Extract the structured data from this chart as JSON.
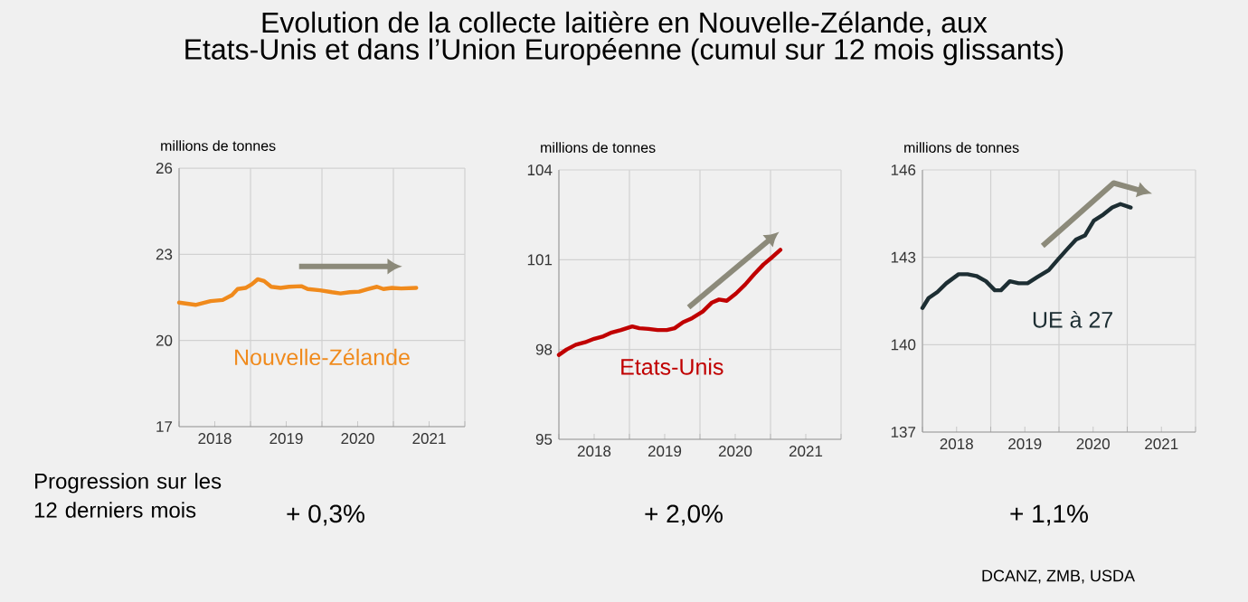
{
  "chart_data": [
    {
      "type": "line",
      "title": "Evolution de la collecte laitière en Nouvelle-Zélande, aux Etats-Unis et dans l’Union Européenne (cumul sur 12 mois glissants)",
      "ylabel": "millions de tonnes",
      "xlim": [
        2018,
        2022
      ],
      "ylim": [
        17,
        26
      ],
      "yticks": [
        17,
        20,
        23,
        26
      ],
      "xticks": [
        {
          "value": 2018,
          "label": null
        },
        {
          "value": 2018.5,
          "label": "2018"
        },
        {
          "value": 2019,
          "label": null
        },
        {
          "value": 2019.5,
          "label": "2019"
        },
        {
          "value": 2020,
          "label": null
        },
        {
          "value": 2020.5,
          "label": "2020"
        },
        {
          "value": 2021,
          "label": null
        },
        {
          "value": 2021.5,
          "label": "2021"
        },
        {
          "value": 2022,
          "label": null
        }
      ],
      "grid": true,
      "marker": "none",
      "line_style": "solid",
      "annotations": [
        "Progression sur les 12 derniers mois",
        "+ 0,3%"
      ],
      "series": [
        {
          "name": "Nouvelle-Zélande",
          "color": "#f08a1c",
          "x": [
            2018.0,
            2018.23,
            2018.44,
            2018.61,
            2018.74,
            2018.82,
            2018.93,
            2019.02,
            2019.1,
            2019.19,
            2019.29,
            2019.42,
            2019.54,
            2019.71,
            2019.8,
            2019.97,
            2020.14,
            2020.26,
            2020.39,
            2020.52,
            2020.64,
            2020.77,
            2020.86,
            2020.98,
            2021.11,
            2021.32
          ],
          "values": [
            21.32,
            21.24,
            21.37,
            21.41,
            21.58,
            21.79,
            21.83,
            21.96,
            22.13,
            22.07,
            21.87,
            21.83,
            21.87,
            21.89,
            21.79,
            21.75,
            21.68,
            21.64,
            21.68,
            21.7,
            21.79,
            21.87,
            21.79,
            21.83,
            21.81,
            21.83
          ]
        }
      ]
    },
    {
      "type": "line",
      "ylabel": "millions de tonnes",
      "xlim": [
        2018,
        2022
      ],
      "ylim": [
        95,
        104
      ],
      "yticks": [
        95,
        98,
        101,
        104
      ],
      "xticks": [
        {
          "value": 2018,
          "label": null
        },
        {
          "value": 2018.5,
          "label": "2018"
        },
        {
          "value": 2019,
          "label": null
        },
        {
          "value": 2019.5,
          "label": "2019"
        },
        {
          "value": 2020,
          "label": null
        },
        {
          "value": 2020.5,
          "label": "2020"
        },
        {
          "value": 2021,
          "label": null
        },
        {
          "value": 2021.5,
          "label": "2021"
        },
        {
          "value": 2022,
          "label": null
        }
      ],
      "grid": true,
      "marker": "none",
      "line_style": "solid",
      "annotations": [
        "+ 2,0%"
      ],
      "series": [
        {
          "name": "Etats-Unis",
          "color": "#c00000",
          "x": [
            2018.0,
            2018.11,
            2018.24,
            2018.37,
            2018.5,
            2018.63,
            2018.75,
            2018.88,
            2019.04,
            2019.14,
            2019.27,
            2019.4,
            2019.53,
            2019.64,
            2019.76,
            2019.89,
            2020.04,
            2020.17,
            2020.27,
            2020.38,
            2020.51,
            2020.64,
            2020.77,
            2020.9,
            2021.02,
            2021.14
          ],
          "values": [
            97.82,
            98.0,
            98.16,
            98.24,
            98.36,
            98.44,
            98.57,
            98.65,
            98.77,
            98.71,
            98.69,
            98.65,
            98.65,
            98.71,
            98.91,
            99.05,
            99.27,
            99.57,
            99.67,
            99.63,
            99.87,
            100.17,
            100.52,
            100.84,
            101.08,
            101.33
          ]
        }
      ]
    },
    {
      "type": "line",
      "ylabel": "millions de tonnes",
      "xlim": [
        2018,
        2022
      ],
      "ylim": [
        137,
        146
      ],
      "yticks": [
        137,
        140,
        143,
        146
      ],
      "xticks": [
        {
          "value": 2018,
          "label": null
        },
        {
          "value": 2018.5,
          "label": "2018"
        },
        {
          "value": 2019,
          "label": null
        },
        {
          "value": 2019.5,
          "label": "2019"
        },
        {
          "value": 2020,
          "label": null
        },
        {
          "value": 2020.5,
          "label": "2020"
        },
        {
          "value": 2021,
          "label": null
        },
        {
          "value": 2021.5,
          "label": "2021"
        },
        {
          "value": 2022,
          "label": null
        }
      ],
      "grid": true,
      "marker": "none",
      "line_style": "solid",
      "annotations": [
        "+ 1,1%",
        "DCANZ, ZMB, USDA"
      ],
      "series": [
        {
          "name": "UE à 27",
          "color": "#1d2e33",
          "x": [
            2018.0,
            2018.09,
            2018.22,
            2018.35,
            2018.53,
            2018.66,
            2018.79,
            2018.93,
            2019.06,
            2019.15,
            2019.28,
            2019.41,
            2019.54,
            2019.68,
            2019.85,
            2019.99,
            2020.12,
            2020.25,
            2020.38,
            2020.51,
            2020.65,
            2020.78,
            2020.9,
            2021.05
          ],
          "values": [
            141.26,
            141.6,
            141.81,
            142.11,
            142.42,
            142.42,
            142.36,
            142.18,
            141.87,
            141.87,
            142.18,
            142.11,
            142.11,
            142.32,
            142.56,
            142.94,
            143.28,
            143.61,
            143.75,
            144.26,
            144.47,
            144.71,
            144.83,
            144.71
          ]
        }
      ]
    }
  ]
}
